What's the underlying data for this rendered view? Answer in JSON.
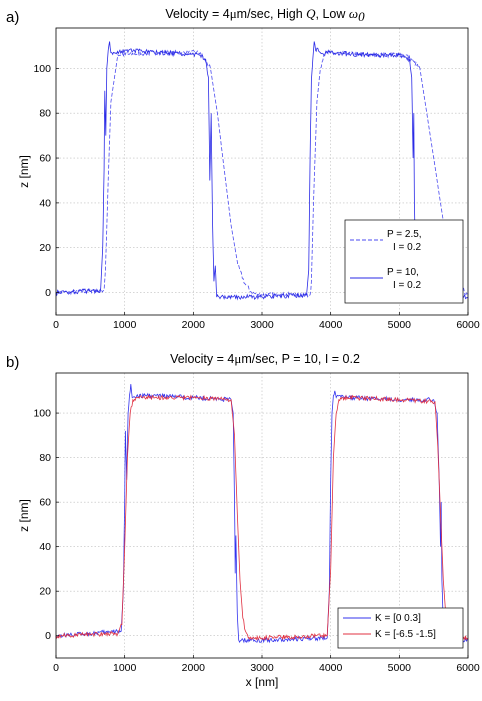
{
  "chart_data": [
    {
      "type": "line",
      "panel_label": "a)",
      "title_prefix": "Velocity = 4",
      "title_mu": "μ",
      "title_unit": "m/sec, High ",
      "title_q": "Q",
      "title_mid": ", Low ",
      "title_omega": "ω",
      "title_omega_sub": "0",
      "xlabel": "",
      "ylabel": "z [nm]",
      "xlim": [
        0,
        6000
      ],
      "ylim": [
        -10,
        118
      ],
      "xticks": [
        0,
        1000,
        2000,
        3000,
        4000,
        5000,
        6000
      ],
      "yticks": [
        0,
        20,
        40,
        60,
        80,
        100
      ],
      "grid": true,
      "legend_position": "lower-right",
      "legend": [
        {
          "line1": "P = 2.5,",
          "line2": "I = 0.2"
        },
        {
          "line1": "P = 10,",
          "line2": "I = 0.2"
        }
      ],
      "series": [
        {
          "style": "dashed",
          "color": "#4a4af0",
          "x": [
            0,
            700,
            720,
            760,
            800,
            900,
            1500,
            2100,
            2250,
            2350,
            2450,
            2550,
            2650,
            2750,
            2850,
            2950,
            3700,
            3720,
            3750,
            3800,
            3850,
            3900,
            4000,
            4500,
            5100,
            5300,
            5400,
            5500,
            5600,
            5700,
            5800,
            5900,
            6000
          ],
          "y": [
            0,
            1,
            10,
            50,
            85,
            106,
            107,
            107,
            100,
            80,
            55,
            30,
            12,
            4,
            0,
            -1,
            -1,
            5,
            40,
            85,
            100,
            106,
            107,
            106,
            106,
            100,
            80,
            60,
            40,
            20,
            8,
            2,
            -1
          ]
        },
        {
          "style": "solid",
          "color": "#2a2ae6",
          "x": [
            0,
            650,
            680,
            700,
            710,
            725,
            740,
            760,
            780,
            800,
            850,
            1000,
            1500,
            2100,
            2180,
            2220,
            2240,
            2260,
            2280,
            2300,
            2320,
            2340,
            2400,
            3000,
            3650,
            3680,
            3700,
            3720,
            3740,
            3760,
            3780,
            3800,
            3850,
            4000,
            4500,
            5000,
            5150,
            5180,
            5200,
            5210,
            5220,
            5240,
            5260,
            5300,
            5500,
            6000
          ],
          "y": [
            0,
            1,
            20,
            55,
            90,
            70,
            100,
            108,
            112,
            107,
            107,
            108,
            107,
            106,
            104,
            96,
            50,
            80,
            30,
            5,
            12,
            -2,
            -2,
            -2,
            -1,
            10,
            60,
            95,
            104,
            112,
            108,
            109,
            107,
            107,
            106,
            106,
            104,
            96,
            60,
            80,
            40,
            5,
            -2,
            -2,
            -2,
            -2
          ]
        }
      ]
    },
    {
      "type": "line",
      "panel_label": "b)",
      "title_prefix": "Velocity = 4",
      "title_mu": "μ",
      "title_rest": "m/sec, P = 10, I = 0.2",
      "xlabel": "x [nm]",
      "ylabel": "z [nm]",
      "xlim": [
        0,
        6000
      ],
      "ylim": [
        -10,
        118
      ],
      "xticks": [
        0,
        1000,
        2000,
        3000,
        4000,
        5000,
        6000
      ],
      "yticks": [
        0,
        20,
        40,
        60,
        80,
        100
      ],
      "grid": true,
      "legend_position": "lower-right",
      "legend": [
        {
          "label": "K = [0  0.3]"
        },
        {
          "label": "K = [-6.5 -1.5]"
        }
      ],
      "series": [
        {
          "style": "solid",
          "color": "#3333ee",
          "x": [
            0,
            950,
            980,
            1000,
            1010,
            1030,
            1050,
            1070,
            1090,
            1110,
            1150,
            1300,
            2000,
            2550,
            2580,
            2600,
            2610,
            2620,
            2640,
            2660,
            2700,
            3000,
            3950,
            3980,
            4000,
            4020,
            4040,
            4060,
            4080,
            4100,
            4200,
            5000,
            5500,
            5550,
            5580,
            5600,
            5610,
            5620,
            5640,
            5660,
            5700,
            6000
          ],
          "y": [
            0,
            2,
            20,
            60,
            92,
            70,
            100,
            108,
            113,
            107,
            107,
            108,
            107,
            106,
            100,
            60,
            28,
            45,
            10,
            -2,
            -2,
            -2,
            -1,
            20,
            70,
            100,
            108,
            110,
            107,
            108,
            107,
            106,
            106,
            100,
            70,
            40,
            60,
            25,
            5,
            -2,
            -2,
            -2
          ]
        },
        {
          "style": "solid",
          "color": "#e03040",
          "x": [
            0,
            900,
            960,
            1000,
            1040,
            1080,
            1120,
            1200,
            2000,
            2550,
            2600,
            2640,
            2680,
            2720,
            2760,
            2800,
            3000,
            3950,
            4000,
            4040,
            4080,
            4120,
            4200,
            5000,
            5520,
            5560,
            5600,
            5640,
            5680,
            5720,
            5800,
            6000
          ],
          "y": [
            0,
            1,
            5,
            40,
            80,
            100,
            106,
            107,
            107,
            106,
            90,
            55,
            25,
            8,
            2,
            -1,
            -1,
            0,
            30,
            80,
            100,
            106,
            107,
            106,
            105,
            85,
            55,
            25,
            8,
            0,
            -1,
            -1
          ]
        }
      ]
    }
  ]
}
